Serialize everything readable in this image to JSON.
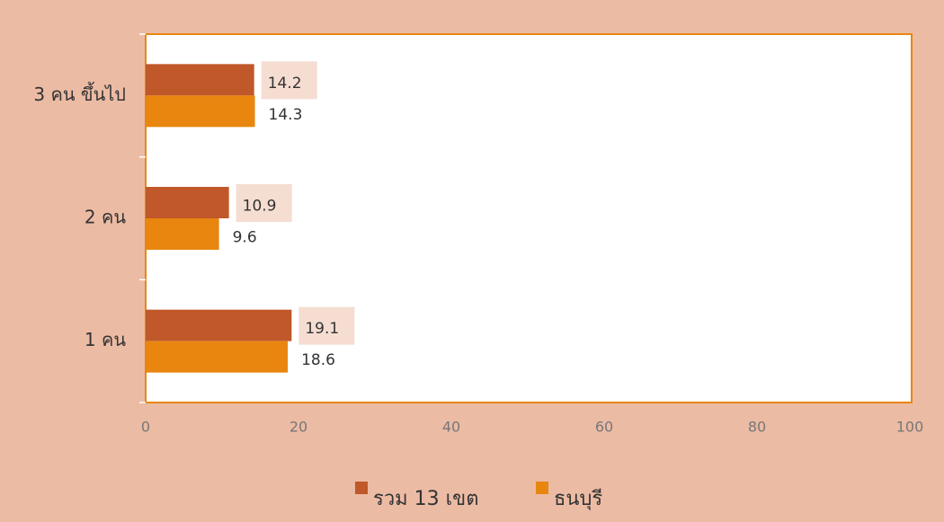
{
  "chart_data": {
    "type": "hbar",
    "categories": [
      "1 คน",
      "2 คน",
      "3 คน ขึ้นไป"
    ],
    "series": [
      {
        "name": "รวม 13 เขต",
        "color": "#c0582a",
        "values": [
          19.1,
          10.9,
          14.2
        ]
      },
      {
        "name": "ธนบุรี",
        "color": "#e8860f",
        "values": [
          18.6,
          9.6,
          14.3
        ]
      }
    ],
    "xlim": [
      0,
      100
    ],
    "xticks": [
      0,
      20,
      40,
      60,
      80,
      100
    ],
    "grid": false,
    "legend": "bottom"
  }
}
